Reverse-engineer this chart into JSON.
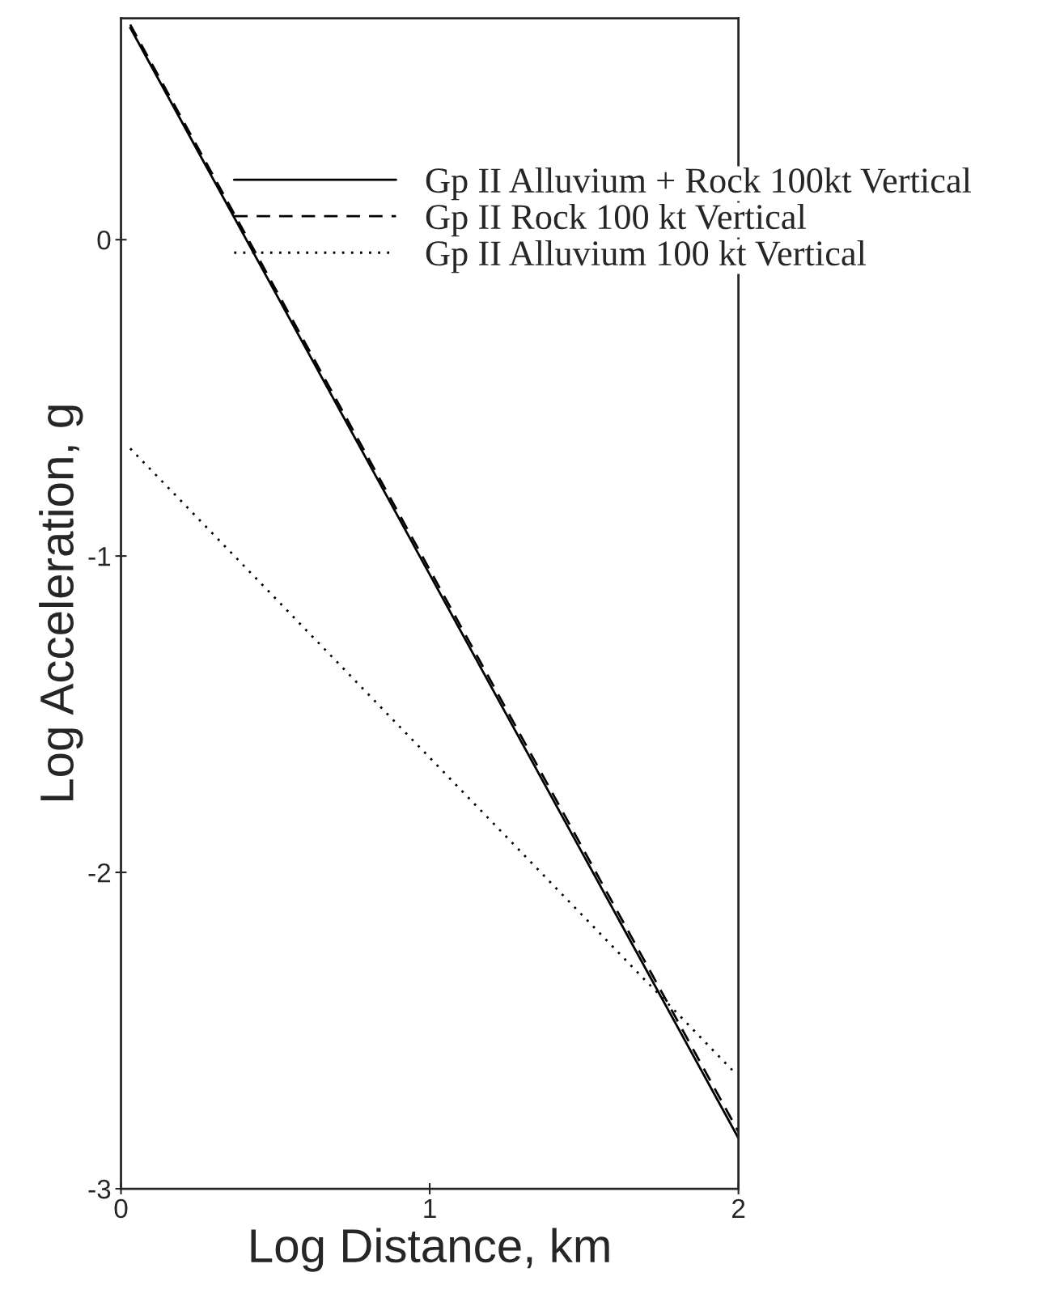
{
  "chart_data": {
    "type": "line",
    "xlabel": "Log Distance, km",
    "ylabel": "Log Acceleration, g",
    "xlim": [
      0,
      2
    ],
    "ylim": [
      -3,
      0.7
    ],
    "xticks": [
      0,
      1,
      2
    ],
    "yticks": [
      0,
      -1,
      -2,
      -3
    ],
    "grid": false,
    "legend": "top right",
    "marker": "none",
    "series": [
      {
        "name": "Gp II Alluvium + Rock 100kt Vertical",
        "color": "#000000",
        "line_style": "solid",
        "x": [
          0.03,
          2
        ],
        "values": [
          0.67,
          -2.84
        ]
      },
      {
        "name": "Gp II Rock 100 kt Vertical",
        "color": "#000000",
        "line_style": "dashed",
        "x": [
          0.03,
          2
        ],
        "values": [
          0.68,
          -2.82
        ]
      },
      {
        "name": "Gp II Alluvium 100 kt Vertical",
        "color": "#000000",
        "line_style": "dotted",
        "x": [
          0.03,
          1.995
        ],
        "values": [
          -0.66,
          -2.64
        ]
      }
    ]
  }
}
